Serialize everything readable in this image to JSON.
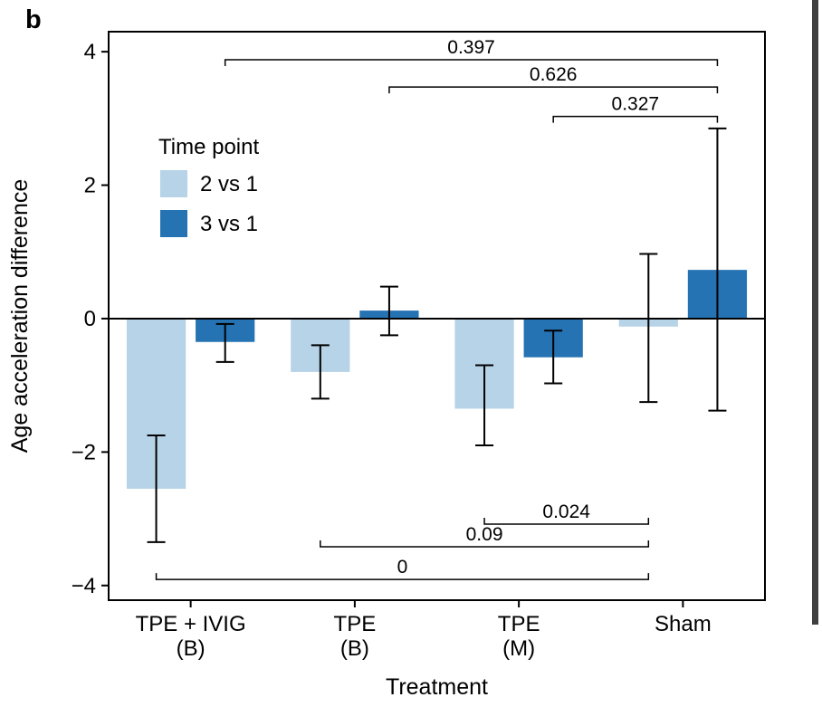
{
  "panel_label": "b",
  "chart_data": {
    "type": "bar",
    "title": "",
    "xlabel": "Treatment",
    "ylabel": "Age acceleration difference",
    "ylim": [
      -4.22,
      4.3
    ],
    "yticks": [
      4,
      2,
      0,
      -2,
      -4
    ],
    "categories": [
      [
        "TPE + IVIG",
        "(B)"
      ],
      [
        "TPE",
        "(B)"
      ],
      [
        "TPE",
        "(M)"
      ],
      [
        "Sham"
      ]
    ],
    "legend": {
      "title": "Time point",
      "position": "top-left-inside",
      "entries": [
        {
          "label": "2 vs 1",
          "color": "#b6d3e8"
        },
        {
          "label": "3 vs 1",
          "color": "#2673b3"
        }
      ]
    },
    "series": [
      {
        "name": "2 vs 1",
        "color": "#b6d3e8",
        "values": [
          -2.55,
          -0.8,
          -1.35,
          -0.12
        ],
        "err_high": [
          -1.75,
          -0.4,
          -0.7,
          0.97
        ],
        "err_low": [
          -3.35,
          -1.2,
          -1.9,
          -1.25
        ]
      },
      {
        "name": "3 vs 1",
        "color": "#2673b3",
        "values": [
          -0.35,
          0.12,
          -0.58,
          0.73
        ],
        "err_high": [
          -0.08,
          0.48,
          -0.18,
          2.85
        ],
        "err_low": [
          -0.65,
          -0.25,
          -0.97,
          -1.38
        ]
      }
    ],
    "grid": "off",
    "significance_top": [
      {
        "label": "0.397",
        "x1": 0.71,
        "x2": 3.71,
        "y": 3.88
      },
      {
        "label": "0.626",
        "x1": 1.71,
        "x2": 3.71,
        "y": 3.47
      },
      {
        "label": "0.327",
        "x1": 2.71,
        "x2": 3.71,
        "y": 3.03
      }
    ],
    "significance_bottom": [
      {
        "label": "0.024",
        "x1": 2.29,
        "x2": 3.29,
        "y": -3.08
      },
      {
        "label": "0.09",
        "x1": 1.29,
        "x2": 3.29,
        "y": -3.42
      },
      {
        "label": "0",
        "x1": 0.29,
        "x2": 3.29,
        "y": -3.91
      }
    ],
    "colors": {
      "foreground": "#000000",
      "background": "#ffffff"
    }
  }
}
